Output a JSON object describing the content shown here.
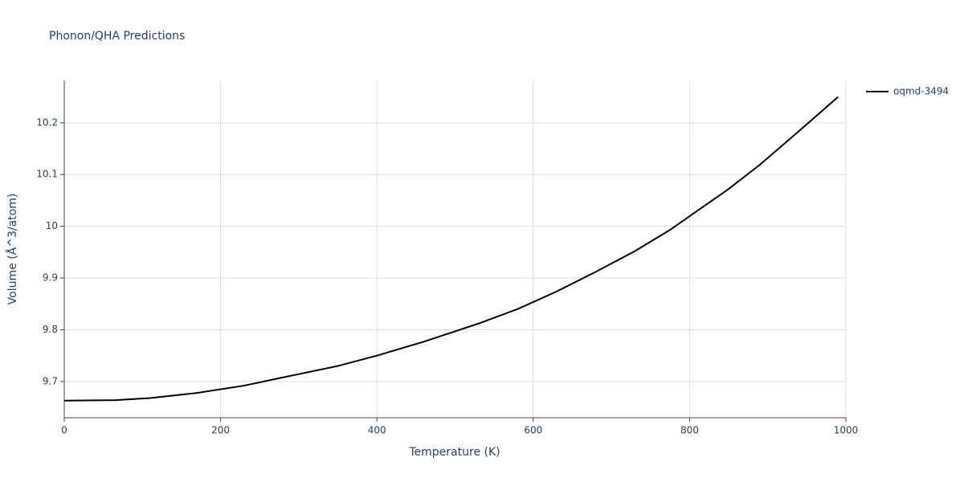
{
  "chart_data": {
    "type": "line",
    "title": "Phonon/QHA Predictions",
    "x_label": "Temperature (K)",
    "y_label": "Volume (Å^3/atom)",
    "x": [
      0,
      65,
      110,
      170,
      230,
      280,
      350,
      400,
      460,
      530,
      580,
      630,
      680,
      730,
      775,
      810,
      849,
      890,
      940,
      990
    ],
    "series": [
      {
        "name": "oqmd-3494",
        "color": "#000000",
        "values": [
          9.663,
          9.664,
          9.668,
          9.678,
          9.692,
          9.708,
          9.73,
          9.75,
          9.777,
          9.812,
          9.84,
          9.874,
          9.912,
          9.952,
          9.993,
          10.03,
          10.071,
          10.119,
          10.184,
          10.25
        ]
      }
    ],
    "xlim": [
      0,
      1000
    ],
    "xticks": [
      0,
      200,
      400,
      600,
      800,
      1000
    ],
    "ylim": [
      9.63,
      10.282
    ],
    "yticks": [
      9.7,
      9.8,
      9.9,
      10,
      10.1,
      10.2
    ],
    "grid": true,
    "legend": "right"
  }
}
